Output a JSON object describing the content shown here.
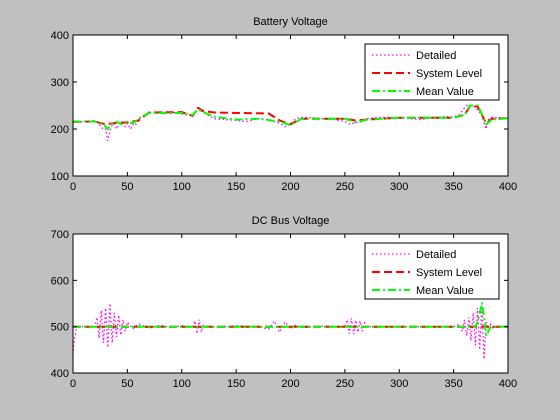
{
  "colors": {
    "figure_bg": "#c0c0c0",
    "axes_bg": "#ffffff",
    "detailed": "#ff00ff",
    "system_level": "#ff0000",
    "mean_value": "#00ff00"
  },
  "chart_data": [
    {
      "type": "line",
      "title": "Battery Voltage",
      "xlabel": "",
      "ylabel": "",
      "xlim": [
        0,
        400
      ],
      "ylim": [
        100,
        400
      ],
      "xticks": [
        0,
        50,
        100,
        150,
        200,
        250,
        300,
        350,
        400
      ],
      "yticks": [
        100,
        200,
        300,
        400
      ],
      "grid": false,
      "legend_position": "top-right",
      "series": [
        {
          "name": "Detailed",
          "style": "dotted",
          "color": "#ff00ff",
          "x": [
            0,
            10,
            20,
            25,
            28,
            30,
            32,
            35,
            38,
            40,
            42,
            45,
            48,
            50,
            53,
            56,
            58,
            60,
            65,
            70,
            80,
            90,
            100,
            105,
            110,
            113,
            115,
            117,
            120,
            125,
            130,
            140,
            150,
            160,
            170,
            180,
            190,
            195,
            200,
            205,
            210,
            220,
            230,
            240,
            250,
            255,
            260,
            265,
            270,
            280,
            290,
            300,
            310,
            320,
            330,
            340,
            350,
            355,
            360,
            363,
            366,
            370,
            373,
            376,
            378,
            380,
            382,
            385,
            390,
            400
          ],
          "y": [
            215,
            215,
            218,
            208,
            198,
            200,
            175,
            205,
            212,
            200,
            210,
            215,
            205,
            212,
            200,
            213,
            210,
            220,
            228,
            235,
            236,
            236,
            232,
            230,
            228,
            236,
            244,
            240,
            235,
            228,
            222,
            220,
            218,
            216,
            222,
            220,
            212,
            205,
            210,
            222,
            225,
            224,
            222,
            220,
            216,
            210,
            214,
            215,
            222,
            225,
            225,
            224,
            222,
            220,
            224,
            226,
            226,
            230,
            245,
            252,
            250,
            246,
            238,
            230,
            212,
            200,
            220,
            225,
            224,
            223
          ]
        },
        {
          "name": "System Level",
          "style": "dashed",
          "color": "#ff0000",
          "x": [
            0,
            20,
            30,
            40,
            50,
            60,
            70,
            100,
            110,
            115,
            120,
            130,
            180,
            190,
            200,
            210,
            250,
            260,
            270,
            300,
            350,
            360,
            365,
            372,
            376,
            380,
            385,
            400
          ],
          "y": [
            215,
            216,
            210,
            213,
            214,
            218,
            235,
            236,
            228,
            245,
            238,
            235,
            233,
            218,
            210,
            222,
            222,
            218,
            220,
            224,
            224,
            230,
            248,
            248,
            230,
            212,
            222,
            223
          ]
        },
        {
          "name": "Mean Value",
          "style": "dashdot",
          "color": "#00ff00",
          "x": [
            0,
            20,
            28,
            32,
            35,
            40,
            45,
            50,
            55,
            60,
            70,
            100,
            110,
            115,
            120,
            130,
            150,
            170,
            190,
            200,
            210,
            250,
            260,
            270,
            300,
            350,
            360,
            365,
            372,
            376,
            380,
            385,
            400
          ],
          "y": [
            216,
            216,
            210,
            200,
            210,
            215,
            210,
            216,
            212,
            222,
            234,
            234,
            230,
            242,
            236,
            226,
            220,
            222,
            216,
            208,
            222,
            222,
            214,
            220,
            224,
            224,
            230,
            250,
            250,
            232,
            210,
            220,
            223
          ]
        }
      ]
    },
    {
      "type": "line",
      "title": "DC Bus Voltage",
      "xlabel": "",
      "ylabel": "",
      "xlim": [
        0,
        400
      ],
      "ylim": [
        400,
        700
      ],
      "xticks": [
        0,
        50,
        100,
        150,
        200,
        250,
        300,
        350,
        400
      ],
      "yticks": [
        400,
        500,
        600,
        700
      ],
      "grid": false,
      "legend_position": "top-right",
      "series": [
        {
          "name": "Detailed",
          "style": "dotted",
          "color": "#ff00ff",
          "x": [
            0,
            1,
            3,
            6,
            10,
            20,
            22,
            24,
            26,
            28,
            30,
            32,
            34,
            36,
            38,
            40,
            42,
            44,
            46,
            48,
            50,
            55,
            60,
            70,
            80,
            90,
            100,
            110,
            112,
            114,
            116,
            118,
            120,
            122,
            124,
            130,
            150,
            170,
            180,
            185,
            190,
            195,
            200,
            205,
            210,
            230,
            250,
            252,
            254,
            256,
            258,
            260,
            262,
            264,
            266,
            268,
            270,
            280,
            300,
            320,
            340,
            350,
            355,
            358,
            360,
            362,
            364,
            366,
            368,
            370,
            372,
            374,
            376,
            378,
            380,
            382,
            384,
            386,
            390,
            400
          ],
          "y": [
            440,
            470,
            495,
            500,
            500,
            500,
            520,
            475,
            535,
            465,
            540,
            455,
            550,
            465,
            530,
            478,
            525,
            482,
            515,
            490,
            510,
            495,
            506,
            497,
            503,
            498,
            502,
            498,
            512,
            485,
            515,
            488,
            505,
            500,
            500,
            498,
            502,
            500,
            495,
            512,
            488,
            510,
            495,
            504,
            498,
            501,
            500,
            515,
            485,
            518,
            484,
            514,
            488,
            512,
            490,
            508,
            500,
            500,
            500,
            500,
            500,
            500,
            505,
            490,
            515,
            480,
            520,
            470,
            530,
            460,
            540,
            450,
            548,
            430,
            510,
            490,
            505,
            497,
            500,
            500
          ]
        },
        {
          "name": "System Level",
          "style": "dashed",
          "color": "#ff0000",
          "x": [
            0,
            100,
            200,
            300,
            400
          ],
          "y": [
            500,
            500,
            500,
            500,
            500
          ]
        },
        {
          "name": "Mean Value",
          "style": "dashdot",
          "color": "#00ff00",
          "x": [
            0,
            100,
            200,
            300,
            370,
            372,
            374,
            376,
            378,
            380,
            382,
            384,
            390,
            400
          ],
          "y": [
            500,
            500,
            500,
            500,
            500,
            510,
            528,
            552,
            520,
            480,
            490,
            500,
            500,
            500
          ]
        }
      ]
    }
  ]
}
